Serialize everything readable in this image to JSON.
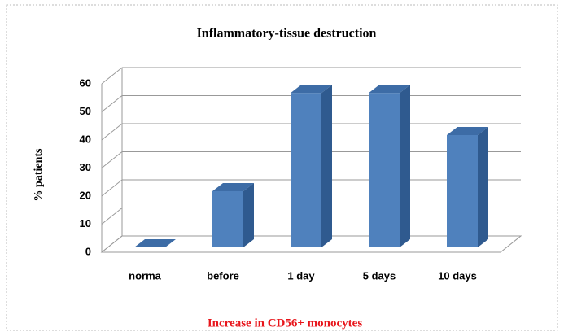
{
  "chart_data": {
    "type": "bar3d",
    "title": "Inflammatory-tissue destruction",
    "y_label": "% patients",
    "x_label": "Increase in CD56+ monocytes",
    "categories": [
      "norma",
      "before",
      "1 day",
      "5 days",
      "10 days"
    ],
    "values": [
      0,
      20,
      55,
      55,
      40
    ],
    "color": "#4f81bd",
    "ylim": [
      0,
      60
    ],
    "yticks": [
      0,
      10,
      20,
      30,
      40,
      50,
      60
    ],
    "grid": true
  }
}
